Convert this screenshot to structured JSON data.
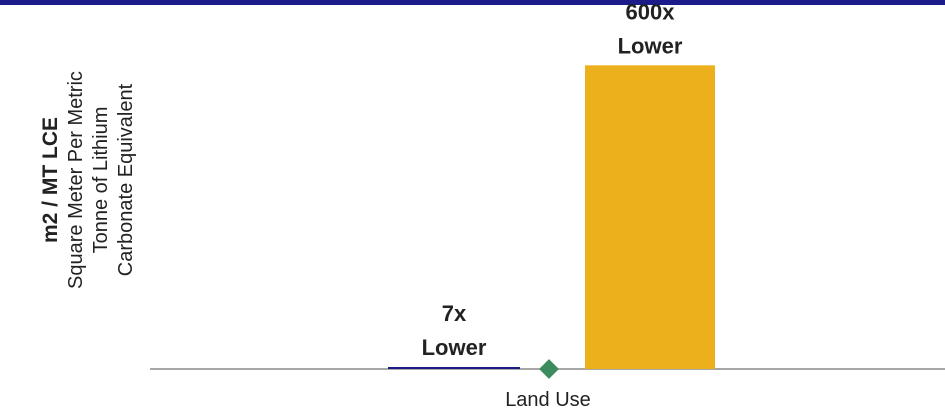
{
  "colors": {
    "top_rule": "#1b1b8a",
    "bar_series_1": "#1b1b8a",
    "bar_series_2": "#ecb01c",
    "marker": "#3d8c5e",
    "axis": "#8a8a8a"
  },
  "chart_data": {
    "type": "bar",
    "title": "",
    "xlabel": "Land Use",
    "ylabel": {
      "line1": "m2 / MT LCE",
      "line2": "Square Meter Per Metric",
      "line3": "Tonne of Lithium",
      "line4": "Carbonate Equivalent"
    },
    "ylim": [
      0,
      650
    ],
    "categories": [
      "Land Use"
    ],
    "series": [
      {
        "values": [
          1
        ],
        "label_line1": "7x",
        "label_line2": "Lower"
      },
      {
        "values": [
          600
        ],
        "label_line1": "600x",
        "label_line2": "Lower"
      }
    ],
    "marker": {
      "shape": "diamond",
      "value": 0
    },
    "grid": false,
    "legend": "none"
  }
}
